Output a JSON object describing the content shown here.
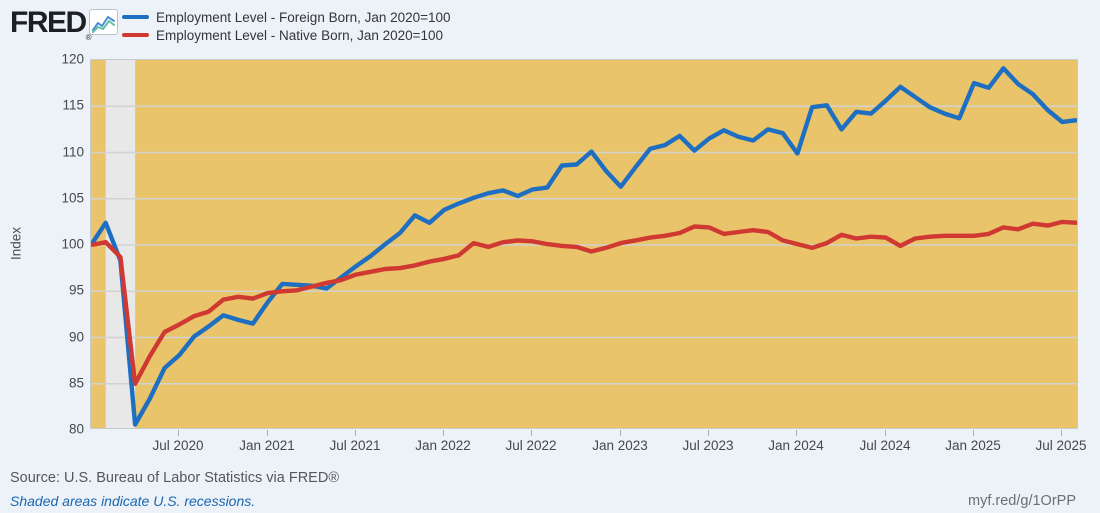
{
  "header": {
    "logo_text": "FRED",
    "registered_mark": "®",
    "logo_icon": "line-chart-icon",
    "legend": [
      {
        "label": "Employment Level - Foreign Born, Jan 2020=100",
        "color": "#1e6ec2"
      },
      {
        "label": "Employment Level - Native Born, Jan 2020=100",
        "color": "#d03832"
      }
    ]
  },
  "footer": {
    "source": "Source: U.S. Bureau of Labor Statistics via FRED®",
    "note": "Shaded areas indicate U.S. recessions.",
    "share_link": "myf.red/g/1OrPP"
  },
  "chart_data": {
    "type": "line",
    "title": "",
    "xlabel": "",
    "ylabel": "Index",
    "ylim": [
      80,
      120
    ],
    "ytick_values": [
      80,
      85,
      90,
      95,
      100,
      105,
      110,
      115,
      120
    ],
    "grid": true,
    "legend_position": "top-left",
    "plot_bg_color": "#e9c46b",
    "grid_color": "#d2d2d0",
    "recession_band_color": "#e8e8e9",
    "x_start_month": "Jan 2020",
    "x_end_month": "Aug 2025",
    "months_per_point": 1,
    "recession_band_month_indexes": [
      1,
      3
    ],
    "recession_band_note": "Feb 2020 - Apr 2020 U.S. recession",
    "xticks": [
      {
        "month_index": 6,
        "label": "Jul 2020"
      },
      {
        "month_index": 12,
        "label": "Jan 2021"
      },
      {
        "month_index": 18,
        "label": "Jul 2021"
      },
      {
        "month_index": 24,
        "label": "Jan 2022"
      },
      {
        "month_index": 30,
        "label": "Jul 2022"
      },
      {
        "month_index": 36,
        "label": "Jan 2023"
      },
      {
        "month_index": 42,
        "label": "Jul 2023"
      },
      {
        "month_index": 48,
        "label": "Jan 2024"
      },
      {
        "month_index": 54,
        "label": "Jul 2024"
      },
      {
        "month_index": 60,
        "label": "Jan 2025"
      },
      {
        "month_index": 66,
        "label": "Jul 2025"
      }
    ],
    "series": [
      {
        "name": "Employment Level - Foreign Born, Jan 2020=100",
        "color": "#1e6ec2",
        "values": [
          100.0,
          102.4,
          98.3,
          80.6,
          83.4,
          86.7,
          88.1,
          90.1,
          91.2,
          92.4,
          91.9,
          91.5,
          93.8,
          95.8,
          95.7,
          95.6,
          95.3,
          96.5,
          97.7,
          98.8,
          100.1,
          101.3,
          103.2,
          102.4,
          103.8,
          104.5,
          105.1,
          105.6,
          105.9,
          105.3,
          106.0,
          106.2,
          108.6,
          108.7,
          110.1,
          108.0,
          106.3,
          108.4,
          110.4,
          110.8,
          111.8,
          110.2,
          111.5,
          112.4,
          111.7,
          111.3,
          112.5,
          112.1,
          109.9,
          114.9,
          115.1,
          112.5,
          114.4,
          114.2,
          115.6,
          117.1,
          116.0,
          114.9,
          114.2,
          113.7,
          117.5,
          117.0,
          119.1,
          117.4,
          116.3,
          114.6,
          113.3,
          113.5
        ]
      },
      {
        "name": "Employment Level - Native Born, Jan 2020=100",
        "color": "#d03832",
        "values": [
          100.0,
          100.3,
          98.7,
          85.0,
          88.0,
          90.6,
          91.4,
          92.3,
          92.8,
          94.1,
          94.4,
          94.2,
          94.8,
          95.0,
          95.1,
          95.5,
          95.9,
          96.2,
          96.8,
          97.1,
          97.4,
          97.5,
          97.8,
          98.2,
          98.5,
          98.9,
          100.2,
          99.8,
          100.3,
          100.5,
          100.4,
          100.1,
          99.9,
          99.8,
          99.3,
          99.7,
          100.2,
          100.5,
          100.8,
          101.0,
          101.3,
          102.0,
          101.9,
          101.2,
          101.4,
          101.6,
          101.4,
          100.5,
          100.1,
          99.7,
          100.2,
          101.1,
          100.7,
          100.9,
          100.8,
          99.9,
          100.7,
          100.9,
          101.0,
          101.0,
          101.0,
          101.2,
          101.9,
          101.7,
          102.3,
          102.1,
          102.5,
          102.4
        ]
      }
    ]
  }
}
